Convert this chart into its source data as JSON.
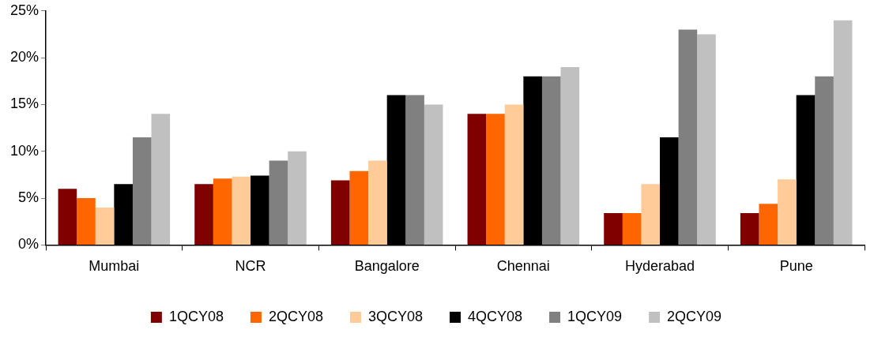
{
  "chart_data": {
    "type": "bar",
    "categories": [
      "Mumbai",
      "NCR",
      "Bangalore",
      "Chennai",
      "Hyderabad",
      "Pune"
    ],
    "series": [
      {
        "name": "1QCY08",
        "color": "#800000",
        "values": [
          6,
          6.5,
          6.9,
          14,
          3.4,
          3.4
        ]
      },
      {
        "name": "2QCY08",
        "color": "#ff6600",
        "values": [
          5,
          7.1,
          7.9,
          14,
          3.4,
          4.4
        ]
      },
      {
        "name": "3QCY08",
        "color": "#ffcc99",
        "values": [
          4,
          7.3,
          9,
          15,
          6.5,
          7
        ]
      },
      {
        "name": "4QCY08",
        "color": "#000000",
        "values": [
          6.5,
          7.4,
          16,
          18,
          11.5,
          16
        ]
      },
      {
        "name": "1QCY09",
        "color": "#808080",
        "values": [
          11.5,
          9,
          16,
          18,
          23,
          18
        ]
      },
      {
        "name": "2QCY09",
        "color": "#c0c0c0",
        "values": [
          14,
          10,
          15,
          19,
          22.5,
          24
        ]
      }
    ],
    "ylim": [
      0,
      25
    ],
    "yticks": [
      {
        "value": 0,
        "label": "0%"
      },
      {
        "value": 5,
        "label": "5%"
      },
      {
        "value": 10,
        "label": "10%"
      },
      {
        "value": 15,
        "label": "15%"
      },
      {
        "value": 20,
        "label": "20%"
      },
      {
        "value": 25,
        "label": "25%"
      }
    ],
    "grid": false,
    "legend": "bottom"
  }
}
